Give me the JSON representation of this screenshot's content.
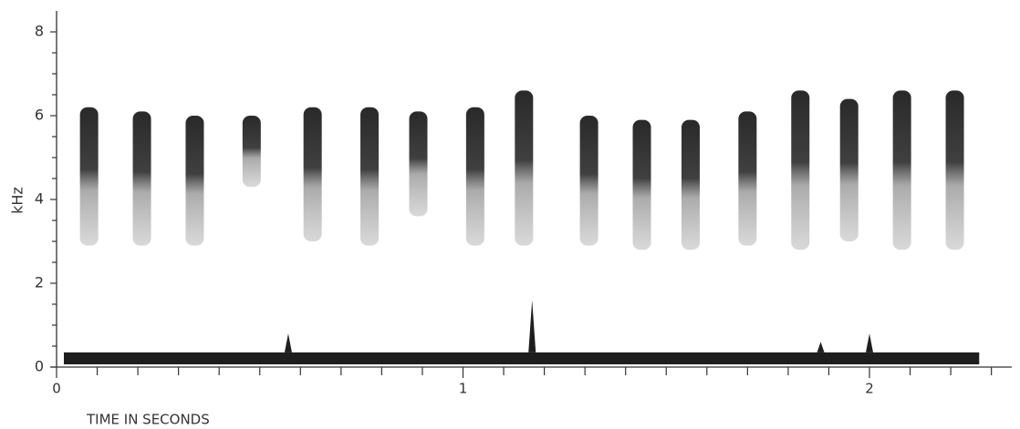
{
  "chart_data": {
    "type": "spectrogram",
    "x_label": "TIME IN SECONDS",
    "y_label": "kHz",
    "xlim": [
      0,
      2.35
    ],
    "ylim": [
      0,
      8.5
    ],
    "xticks": [
      0,
      1,
      2
    ],
    "yticks": [
      0,
      2,
      4,
      6,
      8
    ],
    "xminorticks": [
      0.1,
      0.2,
      0.3,
      0.4,
      0.5,
      0.6,
      0.7,
      0.8,
      0.9,
      1.1,
      1.2,
      1.3,
      1.4,
      1.5,
      1.6,
      1.7,
      1.8,
      1.9,
      2.1,
      2.2,
      2.3
    ],
    "yminorticks": [
      0.5,
      1,
      1.5,
      2.5,
      3,
      3.5,
      4.5,
      5,
      5.5,
      6.5,
      7,
      7.5
    ],
    "color": "#1e1e1e",
    "syllables": {
      "x": [
        0.08,
        0.21,
        0.34,
        0.48,
        0.63,
        0.77,
        0.89,
        1.03,
        1.15,
        1.31,
        1.44,
        1.56,
        1.7,
        1.83,
        1.95,
        2.08,
        2.21
      ],
      "low_khz": [
        2.9,
        2.9,
        2.9,
        4.3,
        3.0,
        2.9,
        3.6,
        2.9,
        2.9,
        2.9,
        2.8,
        2.8,
        2.9,
        2.8,
        3.0,
        2.8,
        2.8
      ],
      "high_khz": [
        6.2,
        6.1,
        6.0,
        6.0,
        6.2,
        6.2,
        6.1,
        6.2,
        6.6,
        6.0,
        5.9,
        5.9,
        6.1,
        6.6,
        6.4,
        6.6,
        6.6
      ]
    },
    "noise_band": {
      "x": [
        0,
        2.27
      ],
      "khz": 0.35
    },
    "spikes": {
      "x": [
        0.57,
        1.17,
        1.88,
        2.0
      ],
      "values": [
        0.8,
        1.6,
        0.6,
        0.8
      ]
    }
  }
}
